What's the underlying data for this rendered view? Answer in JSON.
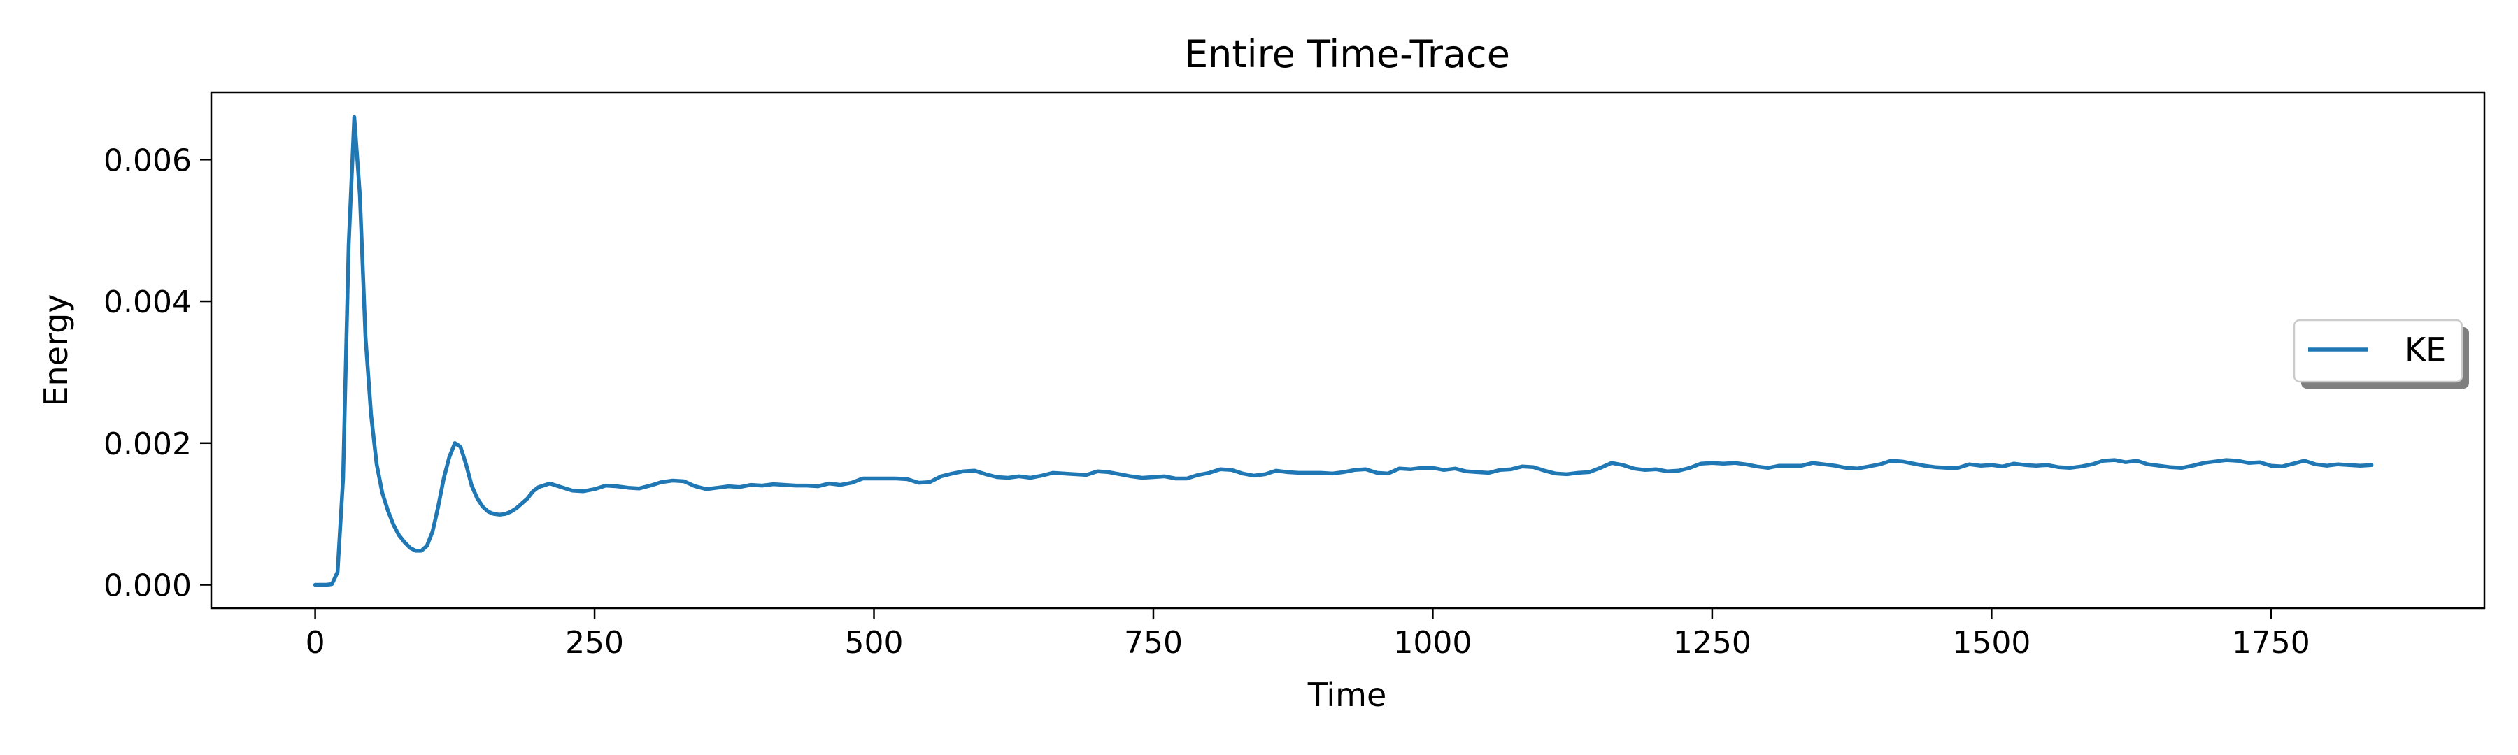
{
  "chart_data": {
    "type": "line",
    "title": "Entire Time-Trace",
    "xlabel": "Time",
    "ylabel": "Energy",
    "xlim": [
      -93,
      1941
    ],
    "ylim": [
      -0.00033,
      0.00695
    ],
    "x_ticks": [
      0,
      250,
      500,
      750,
      1000,
      1250,
      1500,
      1750
    ],
    "y_ticks": [
      0.0,
      0.002,
      0.004,
      0.006
    ],
    "y_tick_labels": [
      "0.000",
      "0.002",
      "0.004",
      "0.006"
    ],
    "grid": false,
    "legend": {
      "position": "center-right",
      "entries": [
        "KE"
      ]
    },
    "series": [
      {
        "name": "KE",
        "color": "#1f77b4",
        "x": [
          0,
          10,
          15,
          20,
          25,
          30,
          35,
          40,
          45,
          50,
          55,
          60,
          65,
          70,
          75,
          80,
          85,
          90,
          95,
          100,
          105,
          110,
          115,
          120,
          125,
          130,
          135,
          140,
          145,
          150,
          155,
          160,
          165,
          170,
          175,
          180,
          185,
          190,
          195,
          200,
          210,
          220,
          230,
          240,
          250,
          260,
          270,
          280,
          290,
          300,
          310,
          320,
          330,
          340,
          350,
          360,
          370,
          380,
          390,
          400,
          410,
          420,
          430,
          440,
          450,
          460,
          470,
          480,
          490,
          500,
          510,
          520,
          530,
          540,
          550,
          560,
          570,
          580,
          590,
          600,
          610,
          620,
          630,
          640,
          650,
          660,
          670,
          680,
          690,
          700,
          710,
          720,
          730,
          740,
          750,
          760,
          770,
          780,
          790,
          800,
          810,
          820,
          830,
          840,
          850,
          860,
          870,
          880,
          890,
          900,
          910,
          920,
          930,
          940,
          950,
          960,
          970,
          980,
          990,
          1000,
          1010,
          1020,
          1030,
          1040,
          1050,
          1060,
          1070,
          1080,
          1090,
          1100,
          1110,
          1120,
          1130,
          1140,
          1150,
          1160,
          1170,
          1180,
          1190,
          1200,
          1210,
          1220,
          1230,
          1240,
          1250,
          1260,
          1270,
          1280,
          1290,
          1300,
          1310,
          1320,
          1330,
          1340,
          1350,
          1360,
          1370,
          1380,
          1390,
          1400,
          1410,
          1420,
          1430,
          1440,
          1450,
          1460,
          1470,
          1480,
          1490,
          1500,
          1510,
          1520,
          1530,
          1540,
          1550,
          1560,
          1570,
          1580,
          1590,
          1600,
          1610,
          1620,
          1630,
          1640,
          1650,
          1660,
          1670,
          1680,
          1690,
          1700,
          1710,
          1720,
          1730,
          1740,
          1750,
          1760,
          1770,
          1780,
          1790,
          1800,
          1810,
          1820,
          1830,
          1840
        ],
        "values": [
          0.0,
          0.0,
          1e-05,
          0.00018,
          0.0015,
          0.0048,
          0.0066,
          0.0055,
          0.0035,
          0.0024,
          0.0017,
          0.0013,
          0.00105,
          0.00085,
          0.0007,
          0.0006,
          0.00052,
          0.00048,
          0.00048,
          0.00055,
          0.00075,
          0.0011,
          0.0015,
          0.0018,
          0.002,
          0.00195,
          0.0017,
          0.0014,
          0.00122,
          0.0011,
          0.00103,
          0.001,
          0.00099,
          0.001,
          0.00103,
          0.00108,
          0.00115,
          0.00122,
          0.00132,
          0.00138,
          0.00143,
          0.00138,
          0.00133,
          0.00132,
          0.00135,
          0.0014,
          0.00139,
          0.00137,
          0.00136,
          0.0014,
          0.00145,
          0.00147,
          0.00146,
          0.00139,
          0.00135,
          0.00137,
          0.00139,
          0.00138,
          0.00141,
          0.0014,
          0.00142,
          0.00141,
          0.0014,
          0.0014,
          0.00139,
          0.00143,
          0.00141,
          0.00144,
          0.0015,
          0.0015,
          0.0015,
          0.0015,
          0.00149,
          0.00144,
          0.00145,
          0.00153,
          0.00157,
          0.0016,
          0.00161,
          0.00156,
          0.00152,
          0.00151,
          0.00153,
          0.00151,
          0.00154,
          0.00158,
          0.00157,
          0.00156,
          0.00155,
          0.0016,
          0.00159,
          0.00156,
          0.00153,
          0.00151,
          0.00152,
          0.00153,
          0.0015,
          0.0015,
          0.00155,
          0.00158,
          0.00163,
          0.00162,
          0.00157,
          0.00154,
          0.00156,
          0.00161,
          0.00159,
          0.00158,
          0.00158,
          0.00158,
          0.00157,
          0.00159,
          0.00162,
          0.00163,
          0.00158,
          0.00157,
          0.00164,
          0.00163,
          0.00165,
          0.00165,
          0.00162,
          0.00164,
          0.0016,
          0.00159,
          0.00158,
          0.00162,
          0.00163,
          0.00167,
          0.00166,
          0.00161,
          0.00157,
          0.00156,
          0.00158,
          0.00159,
          0.00165,
          0.00172,
          0.00169,
          0.00164,
          0.00162,
          0.00163,
          0.0016,
          0.00161,
          0.00165,
          0.00171,
          0.00172,
          0.00171,
          0.00172,
          0.0017,
          0.00167,
          0.00165,
          0.00168,
          0.00168,
          0.00168,
          0.00172,
          0.0017,
          0.00168,
          0.00165,
          0.00164,
          0.00167,
          0.0017,
          0.00175,
          0.00174,
          0.00171,
          0.00168,
          0.00166,
          0.00165,
          0.00165,
          0.0017,
          0.00168,
          0.00169,
          0.00167,
          0.00171,
          0.00169,
          0.00168,
          0.00169,
          0.00166,
          0.00165,
          0.00167,
          0.0017,
          0.00175,
          0.00176,
          0.00173,
          0.00175,
          0.0017,
          0.00168,
          0.00166,
          0.00165,
          0.00168,
          0.00172,
          0.00174,
          0.00176,
          0.00175,
          0.00172,
          0.00173,
          0.00168,
          0.00167,
          0.00171,
          0.00175,
          0.0017,
          0.00168,
          0.0017,
          0.00169,
          0.00168,
          0.00169
        ]
      }
    ]
  }
}
